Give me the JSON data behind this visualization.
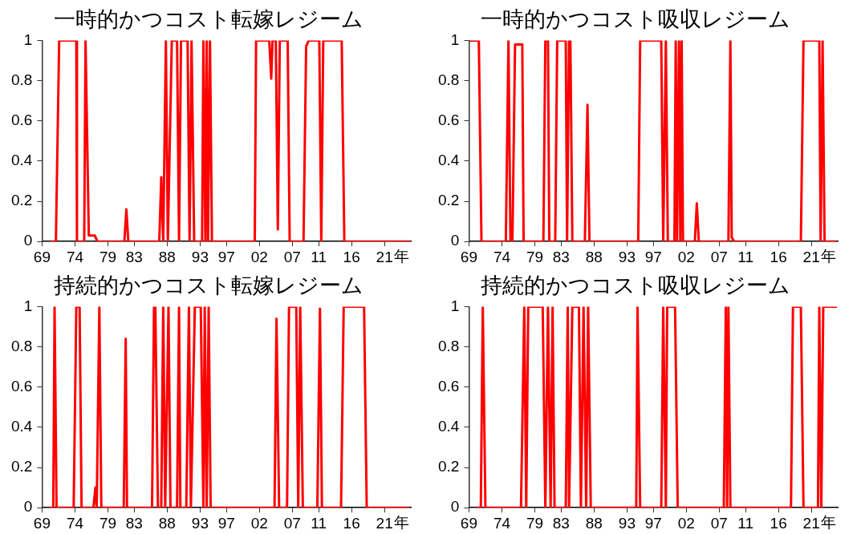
{
  "chart_data": [
    {
      "type": "line",
      "title": "一時的かつコスト転嫁レジーム",
      "xlabel": "年",
      "xlim": [
        1969,
        2025
      ],
      "xticks": [
        {
          "value": 1969,
          "label": "69"
        },
        {
          "value": 1974,
          "label": "74"
        },
        {
          "value": 1979,
          "label": "79"
        },
        {
          "value": 1983,
          "label": "83"
        },
        {
          "value": 1988,
          "label": "88"
        },
        {
          "value": 1993,
          "label": "93"
        },
        {
          "value": 1997,
          "label": "97"
        },
        {
          "value": 2002,
          "label": "02"
        },
        {
          "value": 2007,
          "label": "07"
        },
        {
          "value": 2011,
          "label": "11"
        },
        {
          "value": 2016,
          "label": "16"
        },
        {
          "value": 2021,
          "label": "21"
        }
      ],
      "ylim": [
        0,
        1
      ],
      "yticks": [
        0,
        0.2,
        0.4,
        0.6,
        0.8,
        1
      ],
      "grid": false,
      "marker": "none",
      "line_style": "solid",
      "series": [
        {
          "color": "#ff0000",
          "x": [
            1970.3,
            1971.1,
            1971.6,
            1974.2,
            1974.3,
            1975.4,
            1975.6,
            1976.1,
            1977.0,
            1977.4,
            1981.5,
            1981.8,
            1982.1,
            1986.8,
            1987.1,
            1987.4,
            1987.8,
            1988.1,
            1988.7,
            1989.5,
            1989.8,
            1990.1,
            1991.1,
            1991.4,
            1991.7,
            1992.1,
            1993.3,
            1993.5,
            1993.8,
            1994.0,
            1994.2,
            1994.5,
            1994.8,
            2001.3,
            2001.5,
            2003.5,
            2003.8,
            2004.0,
            2004.5,
            2004.8,
            2005.1,
            2006.3,
            2006.6,
            2008.7,
            2009.1,
            2009.5,
            2011.1,
            2011.4,
            2011.7,
            2014.5,
            2014.9,
            2024.9
          ],
          "values": [
            0,
            0,
            1,
            1,
            0,
            0,
            1,
            0.03,
            0.03,
            0,
            0,
            0.16,
            0,
            0,
            0.32,
            0,
            1,
            0,
            1,
            1,
            0,
            1,
            1,
            0,
            1,
            0,
            0,
            1,
            0,
            1,
            0,
            1,
            0,
            0,
            1,
            1,
            0.81,
            1,
            1,
            0.06,
            1,
            1,
            0,
            0,
            0.97,
            1,
            1,
            0,
            1,
            1,
            0,
            0
          ]
        }
      ]
    },
    {
      "type": "line",
      "title": "一時的かつコスト吸収レジーム",
      "xlabel": "年",
      "xlim": [
        1969,
        2025
      ],
      "xticks": [
        {
          "value": 1969,
          "label": "69"
        },
        {
          "value": 1974,
          "label": "74"
        },
        {
          "value": 1979,
          "label": "79"
        },
        {
          "value": 1983,
          "label": "83"
        },
        {
          "value": 1988,
          "label": "88"
        },
        {
          "value": 1993,
          "label": "93"
        },
        {
          "value": 1997,
          "label": "97"
        },
        {
          "value": 2002,
          "label": "02"
        },
        {
          "value": 2007,
          "label": "07"
        },
        {
          "value": 2011,
          "label": "11"
        },
        {
          "value": 2016,
          "label": "16"
        },
        {
          "value": 2021,
          "label": "21"
        }
      ],
      "ylim": [
        0,
        1
      ],
      "yticks": [
        0,
        0.2,
        0.4,
        0.6,
        0.8,
        1
      ],
      "grid": false,
      "marker": "none",
      "line_style": "solid",
      "series": [
        {
          "color": "#ff0000",
          "x": [
            1969.0,
            1970.5,
            1970.9,
            1974.6,
            1975.0,
            1975.3,
            1975.6,
            1976.0,
            1977.1,
            1977.3,
            1980.3,
            1980.6,
            1981.0,
            1981.2,
            1982.1,
            1982.4,
            1983.7,
            1983.9,
            1984.2,
            1984.4,
            1984.7,
            1986.6,
            1987.0,
            1987.3,
            1994.7,
            1995.0,
            1998.2,
            1998.5,
            1998.9,
            1999.2,
            2000.2,
            2000.4,
            2000.6,
            2000.9,
            2001.1,
            2001.3,
            2001.5,
            2003.3,
            2003.6,
            2003.9,
            2008.4,
            2008.7,
            2008.9,
            2009.3,
            2019.4,
            2019.8,
            2022.2,
            2022.4,
            2022.7,
            2023.0,
            2024.8
          ],
          "values": [
            1,
            1,
            0,
            0,
            1,
            0,
            0,
            0.98,
            0.98,
            0,
            0,
            1,
            1,
            0,
            0,
            1,
            1,
            0,
            1,
            1,
            0,
            0,
            0.68,
            0,
            0,
            1,
            1,
            0,
            1,
            0,
            0,
            1,
            0,
            1,
            0,
            1,
            0,
            0,
            0.19,
            0,
            0,
            1,
            0.02,
            0,
            0,
            1,
            1,
            0,
            1,
            0,
            0
          ]
        }
      ]
    },
    {
      "type": "line",
      "title": "持続的かつコスト転嫁レジーム",
      "xlabel": "年",
      "xlim": [
        1969,
        2025
      ],
      "xticks": [
        {
          "value": 1969,
          "label": "69"
        },
        {
          "value": 1974,
          "label": "74"
        },
        {
          "value": 1979,
          "label": "79"
        },
        {
          "value": 1983,
          "label": "83"
        },
        {
          "value": 1988,
          "label": "88"
        },
        {
          "value": 1993,
          "label": "93"
        },
        {
          "value": 1997,
          "label": "97"
        },
        {
          "value": 2002,
          "label": "02"
        },
        {
          "value": 2007,
          "label": "07"
        },
        {
          "value": 2011,
          "label": "11"
        },
        {
          "value": 2016,
          "label": "16"
        },
        {
          "value": 2021,
          "label": "21"
        }
      ],
      "ylim": [
        0,
        1
      ],
      "yticks": [
        0,
        0.2,
        0.4,
        0.6,
        0.8,
        1
      ],
      "grid": false,
      "marker": "none",
      "line_style": "solid",
      "series": [
        {
          "color": "#ff0000",
          "x": [
            1970.2,
            1970.7,
            1970.9,
            1971.2,
            1973.8,
            1974.2,
            1974.7,
            1975.0,
            1976.8,
            1977.1,
            1977.3,
            1977.7,
            1978.0,
            1981.4,
            1981.7,
            1981.9,
            1985.7,
            1986.0,
            1986.2,
            1986.6,
            1987.1,
            1987.4,
            1987.7,
            1988.2,
            1988.5,
            1989.5,
            1989.8,
            1990.0,
            1990.9,
            1991.3,
            1991.6,
            1992.2,
            1993.1,
            1993.5,
            1993.7,
            1994.0,
            1994.3,
            1994.6,
            2004.3,
            2004.6,
            2005.0,
            2006.2,
            2006.5,
            2007.6,
            2007.9,
            2008.2,
            2008.6,
            2010.8,
            2011.2,
            2011.5,
            2014.4,
            2014.8,
            2017.9,
            2018.3,
            2024.7
          ],
          "values": [
            0,
            0,
            1,
            0,
            0,
            1,
            1,
            0,
            0,
            0.1,
            0,
            1,
            0,
            0,
            0.84,
            0,
            0,
            1,
            1,
            0,
            0,
            1,
            0,
            1,
            0,
            0,
            1,
            0,
            0,
            1,
            0,
            1,
            1,
            0,
            1,
            0,
            1,
            0,
            0,
            0.94,
            0,
            0,
            1,
            1,
            0,
            1,
            0,
            0,
            0.99,
            0,
            0,
            1,
            1,
            0,
            0
          ]
        }
      ]
    },
    {
      "type": "line",
      "title": "持続的かつコスト吸収レジーム",
      "xlabel": "年",
      "xlim": [
        1969,
        2025
      ],
      "xticks": [
        {
          "value": 1969,
          "label": "69"
        },
        {
          "value": 1974,
          "label": "74"
        },
        {
          "value": 1979,
          "label": "79"
        },
        {
          "value": 1983,
          "label": "83"
        },
        {
          "value": 1988,
          "label": "88"
        },
        {
          "value": 1993,
          "label": "93"
        },
        {
          "value": 1997,
          "label": "97"
        },
        {
          "value": 2002,
          "label": "02"
        },
        {
          "value": 2007,
          "label": "07"
        },
        {
          "value": 2011,
          "label": "11"
        },
        {
          "value": 2016,
          "label": "16"
        },
        {
          "value": 2021,
          "label": "21"
        }
      ],
      "ylim": [
        0,
        1
      ],
      "yticks": [
        0,
        0.2,
        0.4,
        0.6,
        0.8,
        1
      ],
      "grid": false,
      "marker": "none",
      "line_style": "solid",
      "series": [
        {
          "color": "#ff0000",
          "x": [
            1970.2,
            1970.8,
            1971.1,
            1971.5,
            1976.9,
            1977.4,
            1977.7,
            1978.0,
            1980.2,
            1980.6,
            1981.0,
            1981.4,
            1981.7,
            1982.0,
            1983.7,
            1984.0,
            1984.2,
            1984.7,
            1985.7,
            1986.0,
            1986.4,
            1986.8,
            1987.1,
            1987.5,
            1994.4,
            1994.6,
            1995.0,
            1998.2,
            1998.5,
            1998.9,
            1999.1,
            2000.3,
            2000.7,
            2007.7,
            2008.0,
            2008.2,
            2008.4,
            2008.7,
            2017.9,
            2018.2,
            2019.4,
            2019.8,
            2022.0,
            2022.2,
            2022.5,
            2022.8,
            2024.9
          ],
          "values": [
            0,
            0,
            1,
            0,
            0,
            1,
            0,
            1,
            1,
            0,
            1,
            0,
            1,
            0,
            0,
            1,
            0,
            1,
            1,
            0,
            1,
            0,
            1,
            0,
            0,
            1,
            0,
            0,
            1,
            0,
            1,
            1,
            0,
            0,
            1,
            0,
            1,
            0,
            0,
            1,
            1,
            0,
            0,
            1,
            0,
            1,
            1
          ]
        }
      ]
    }
  ]
}
